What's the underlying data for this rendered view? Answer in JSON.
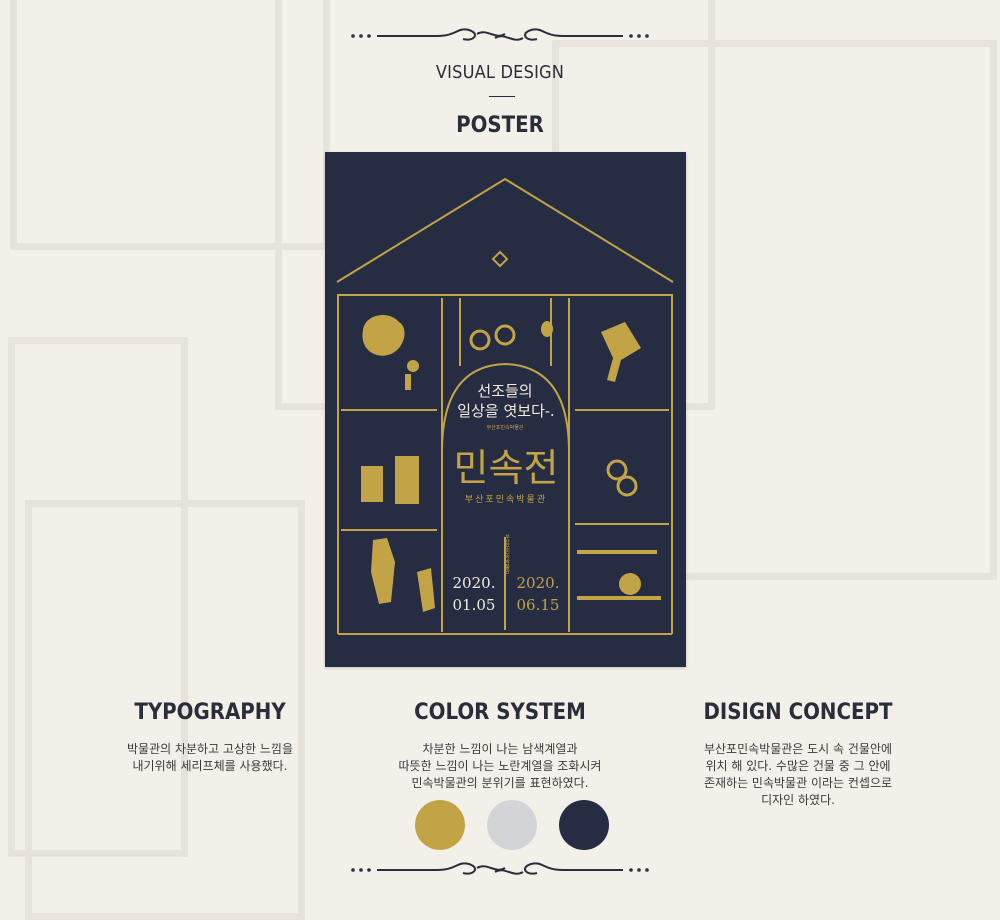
{
  "header": {
    "section": "VISUAL DESIGN",
    "title": "POSTER"
  },
  "poster": {
    "tagline_1": "선조들의",
    "tagline_2": "일상을 엿보다-.",
    "small_caption": "부산포민속박물관",
    "main_title": "민속전",
    "museum": "부산포민속박물관",
    "vertical_text": "부산포민속박물관",
    "start_year": "2020.",
    "start_date": "01.05",
    "end_year": "2020.",
    "end_date": "06.15"
  },
  "typography": {
    "title": "TYPOGRAPHY",
    "line1": "박물관의 차분하고 고상한 느낌을",
    "line2": "내기위해 세리프체를 사용했다."
  },
  "color_system": {
    "title": "COLOR SYSTEM",
    "line1": "차분한 느낌이 나는 남색계열과",
    "line2": "따뜻한 느낌이 나는 노란계열을 조화시켜",
    "line3": "민속박물관의 분위기를 표현하였다.",
    "swatches": [
      "#c2a446",
      "#d3d4d8",
      "#262c42"
    ]
  },
  "concept": {
    "title": "DISIGN CONCEPT",
    "line1": "부산포민속박물관은 도시 속 건물안에",
    "line2": "위치 해 있다. 수많은 건물 중 그 안에",
    "line3": "존재하는 민속박물관 이라는 컨셉으로",
    "line4": "디자인 하였다."
  }
}
